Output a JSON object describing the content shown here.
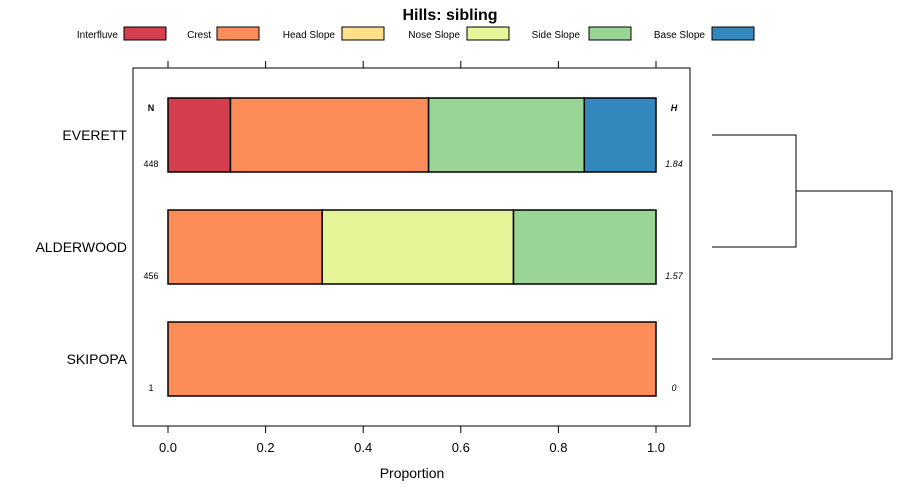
{
  "chart_data": {
    "type": "bar",
    "stacked": true,
    "orientation": "horizontal",
    "title": "Hills: sibling",
    "xlabel": "Proportion",
    "ylabel": "",
    "xlim": [
      0,
      1
    ],
    "x_ticks": [
      "0.0",
      "0.2",
      "0.4",
      "0.6",
      "0.8",
      "1.0"
    ],
    "x_tick_values": [
      0,
      0.2,
      0.4,
      0.6,
      0.8,
      1.0
    ],
    "legend_position": "top",
    "categories": [
      "EVERETT",
      "ALDERWOOD",
      "SKIPOPA"
    ],
    "series": [
      {
        "name": "Interfluve",
        "color": "#d53e4f",
        "values": [
          0.128,
          0,
          0
        ]
      },
      {
        "name": "Crest",
        "color": "#fc8d59",
        "values": [
          0.406,
          0.316,
          1.0
        ]
      },
      {
        "name": "Head Slope",
        "color": "#fee08b",
        "values": [
          0,
          0,
          0
        ]
      },
      {
        "name": "Nose Slope",
        "color": "#e6f598",
        "values": [
          0,
          0.392,
          0
        ]
      },
      {
        "name": "Side Slope",
        "color": "#99d594",
        "values": [
          0.319,
          0.292,
          0
        ]
      },
      {
        "name": "Base Slope",
        "color": "#3288bd",
        "values": [
          0.147,
          0,
          0
        ]
      }
    ],
    "n_header": "N",
    "h_header": "H",
    "n_values": [
      "448",
      "456",
      "1"
    ],
    "h_values": [
      "1.84",
      "1.57",
      "0"
    ],
    "dendrogram": {
      "merges": [
        {
          "left": "EVERETT",
          "right": "ALDERWOOD",
          "height": 0.42
        },
        {
          "left": "EVERETT+ALDERWOOD",
          "right": "SKIPOPA",
          "height": 0.9
        }
      ]
    }
  }
}
